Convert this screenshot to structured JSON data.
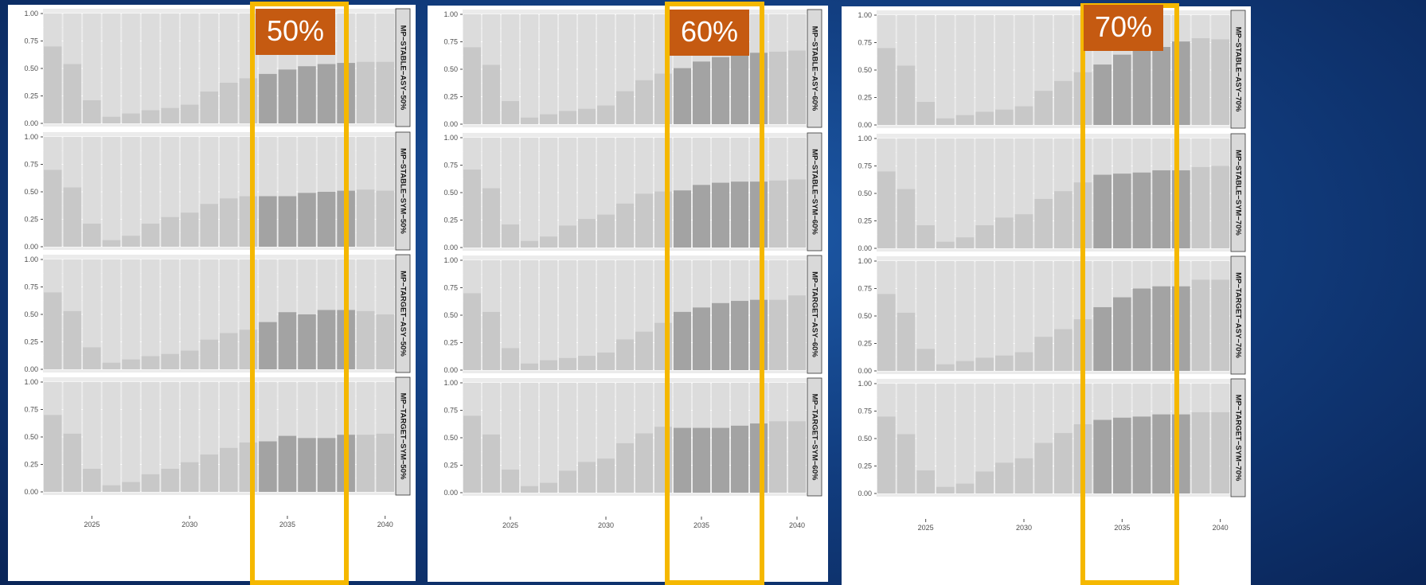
{
  "colors": {
    "background": "#15488f",
    "highlight_border": "#f5b800",
    "badge_fill": "#c55a11",
    "bar_light": "#c8c8c8",
    "bar_dark": "#a3a3a3",
    "band": "#dcdcdc"
  },
  "chart_data": [
    {
      "type": "bar",
      "badge": "50%",
      "x_ticks": [
        2025,
        2030,
        2035,
        2040
      ],
      "years": [
        2023,
        2024,
        2025,
        2026,
        2027,
        2028,
        2029,
        2030,
        2031,
        2032,
        2033,
        2034,
        2035,
        2036,
        2037,
        2038,
        2039,
        2040
      ],
      "highlight_years": [
        2034,
        2038
      ],
      "ylim": [
        0,
        1
      ],
      "y_ticks": [
        "0.00",
        "0.25",
        "0.50",
        "0.75",
        "1.00"
      ],
      "facets": [
        {
          "name": "MP−STABLE−ASY−50%",
          "values": [
            0.7,
            0.54,
            0.21,
            0.06,
            0.09,
            0.12,
            0.14,
            0.17,
            0.29,
            0.37,
            0.41,
            0.45,
            0.49,
            0.52,
            0.54,
            0.55,
            0.56,
            0.56
          ]
        },
        {
          "name": "MP−STABLE−SYM−50%",
          "values": [
            0.7,
            0.54,
            0.21,
            0.06,
            0.1,
            0.21,
            0.27,
            0.31,
            0.39,
            0.44,
            0.46,
            0.46,
            0.46,
            0.49,
            0.5,
            0.51,
            0.52,
            0.51
          ]
        },
        {
          "name": "MP−TARGET−ASY−50%",
          "values": [
            0.7,
            0.53,
            0.2,
            0.06,
            0.09,
            0.12,
            0.14,
            0.17,
            0.27,
            0.33,
            0.36,
            0.43,
            0.52,
            0.5,
            0.54,
            0.54,
            0.53,
            0.5
          ]
        },
        {
          "name": "MP−TARGET−SYM−50%",
          "values": [
            0.7,
            0.53,
            0.21,
            0.06,
            0.09,
            0.16,
            0.21,
            0.27,
            0.34,
            0.4,
            0.45,
            0.46,
            0.51,
            0.49,
            0.49,
            0.52,
            0.52,
            0.53
          ]
        }
      ]
    },
    {
      "type": "bar",
      "badge": "60%",
      "x_ticks": [
        2025,
        2030,
        2035,
        2040
      ],
      "years": [
        2023,
        2024,
        2025,
        2026,
        2027,
        2028,
        2029,
        2030,
        2031,
        2032,
        2033,
        2034,
        2035,
        2036,
        2037,
        2038,
        2039,
        2040
      ],
      "highlight_years": [
        2034,
        2038
      ],
      "ylim": [
        0,
        1
      ],
      "y_ticks": [
        "0.00",
        "0.25",
        "0.50",
        "0.75",
        "1.00"
      ],
      "facets": [
        {
          "name": "MP−STABLE−ASY−60%",
          "values": [
            0.7,
            0.54,
            0.21,
            0.06,
            0.09,
            0.12,
            0.14,
            0.17,
            0.3,
            0.4,
            0.46,
            0.51,
            0.57,
            0.61,
            0.63,
            0.65,
            0.66,
            0.67
          ]
        },
        {
          "name": "MP−STABLE−SYM−60%",
          "values": [
            0.71,
            0.54,
            0.21,
            0.06,
            0.1,
            0.2,
            0.26,
            0.3,
            0.4,
            0.49,
            0.51,
            0.52,
            0.57,
            0.59,
            0.6,
            0.6,
            0.61,
            0.62
          ]
        },
        {
          "name": "MP−TARGET−ASY−60%",
          "values": [
            0.7,
            0.53,
            0.2,
            0.06,
            0.09,
            0.11,
            0.13,
            0.16,
            0.28,
            0.35,
            0.43,
            0.53,
            0.57,
            0.61,
            0.63,
            0.64,
            0.64,
            0.68
          ]
        },
        {
          "name": "MP−TARGET−SYM−60%",
          "values": [
            0.7,
            0.53,
            0.21,
            0.06,
            0.09,
            0.2,
            0.28,
            0.31,
            0.45,
            0.54,
            0.6,
            0.59,
            0.59,
            0.59,
            0.61,
            0.63,
            0.65,
            0.65
          ]
        }
      ]
    },
    {
      "type": "bar",
      "badge": "70%",
      "x_ticks": [
        2025,
        2030,
        2035,
        2040
      ],
      "years": [
        2023,
        2024,
        2025,
        2026,
        2027,
        2028,
        2029,
        2030,
        2031,
        2032,
        2033,
        2034,
        2035,
        2036,
        2037,
        2038,
        2039,
        2040
      ],
      "highlight_years": [
        2034,
        2038
      ],
      "ylim": [
        0,
        1
      ],
      "y_ticks": [
        "0.00",
        "0.25",
        "0.50",
        "0.75",
        "1.00"
      ],
      "facets": [
        {
          "name": "MP−STABLE−ASY−70%",
          "values": [
            0.7,
            0.54,
            0.21,
            0.06,
            0.09,
            0.12,
            0.14,
            0.17,
            0.31,
            0.4,
            0.48,
            0.55,
            0.64,
            0.69,
            0.71,
            0.76,
            0.79,
            0.78
          ]
        },
        {
          "name": "MP−STABLE−SYM−70%",
          "values": [
            0.7,
            0.54,
            0.21,
            0.06,
            0.1,
            0.21,
            0.28,
            0.31,
            0.45,
            0.52,
            0.6,
            0.67,
            0.68,
            0.69,
            0.71,
            0.71,
            0.74,
            0.75
          ]
        },
        {
          "name": "MP−TARGET−ASY−70%",
          "values": [
            0.7,
            0.53,
            0.2,
            0.06,
            0.09,
            0.12,
            0.14,
            0.17,
            0.31,
            0.38,
            0.47,
            0.58,
            0.67,
            0.75,
            0.77,
            0.77,
            0.83,
            0.83
          ]
        },
        {
          "name": "MP−TARGET−SYM−70%",
          "values": [
            0.7,
            0.54,
            0.21,
            0.06,
            0.09,
            0.2,
            0.28,
            0.32,
            0.46,
            0.55,
            0.63,
            0.67,
            0.69,
            0.7,
            0.72,
            0.72,
            0.74,
            0.74
          ]
        }
      ]
    }
  ]
}
